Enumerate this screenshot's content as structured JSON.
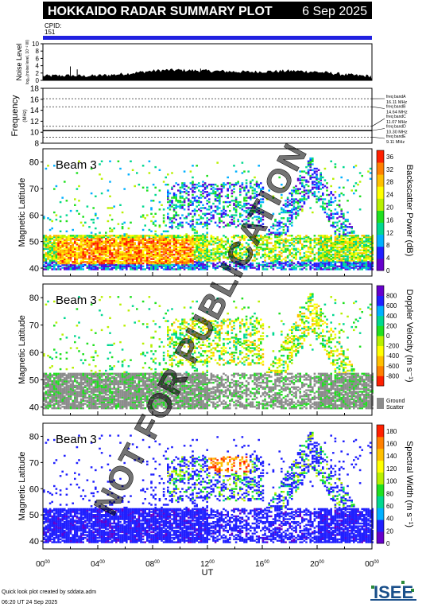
{
  "header": {
    "title": "HOKKAIDO RADAR SUMMARY PLOT",
    "date": "6 Sep 2025",
    "cpid_label": "CPID:",
    "cpid_value": "151"
  },
  "watermark": "NOT FOR PUBLICATION",
  "footer": {
    "created_by": "Quick look plot created by sddata.adm",
    "created_time": "06:20 UT 24 Sep 2025",
    "logo_text": "ISEE"
  },
  "colors": {
    "cpid_bar": "#2020e0",
    "ground_scatter": "#8c8c8c"
  },
  "chart_data": [
    {
      "type": "area",
      "id": "noise",
      "ylabel": "Noise Level",
      "ylabel_sub": "log₁₀(noise level, 10⁻² W)",
      "yticks": [
        "0",
        "2",
        "4",
        "6",
        "8",
        "10"
      ],
      "ylim": [
        0,
        10
      ],
      "x_hours": [
        0,
        1,
        2,
        3,
        4,
        5,
        6,
        7,
        8,
        9,
        10,
        11,
        12,
        13,
        14,
        15,
        16,
        17,
        18,
        19,
        20,
        21,
        22,
        23,
        24
      ],
      "values": [
        1.2,
        1.3,
        1.3,
        1.2,
        1.3,
        1.5,
        1.8,
        2.2,
        2.6,
        2.8,
        2.8,
        2.7,
        2.6,
        2.5,
        2.4,
        2.3,
        2.4,
        2.5,
        2.6,
        2.5,
        2.3,
        2.0,
        1.6,
        1.3,
        1.2
      ],
      "spikes": [
        {
          "x": 2.0,
          "y": 3.8
        },
        {
          "x": 2.5,
          "y": 3.0
        },
        {
          "x": 11.5,
          "y": 3.2
        }
      ]
    },
    {
      "type": "line",
      "id": "frequency",
      "ylabel": "Frequency",
      "ylabel_unit": "(MHz)",
      "yticks": [
        "8",
        "10",
        "12",
        "14",
        "16",
        "18"
      ],
      "ylim": [
        8,
        18
      ],
      "bands": [
        {
          "name": "freq bandA",
          "mhz": "16.11 MHz",
          "value": 16.11
        },
        {
          "name": "freq bandB",
          "mhz": "14.64 MHz",
          "value": 14.64
        },
        {
          "name": "freq bandC",
          "mhz": "11.07 MHz",
          "value": 11.07
        },
        {
          "name": "freq bandD",
          "mhz": "10.30 MHz",
          "value": 10.3
        },
        {
          "name": "freq bandE",
          "mhz": "9.11 MHz",
          "value": 9.11
        }
      ],
      "active_value": 10.3
    },
    {
      "type": "heatmap",
      "id": "power",
      "beam_label": "Beam  3",
      "ylabel": "Magnetic Latitude",
      "yticks": [
        "40",
        "50",
        "60",
        "70",
        "80"
      ],
      "ylim": [
        37,
        85
      ],
      "colorbar_label": "Backscatter Power (dB)",
      "colorbar_ticks": [
        "0",
        "4",
        "8",
        "12",
        "16",
        "20",
        "24",
        "28",
        "32",
        "36"
      ],
      "colorbar_range": [
        0,
        38
      ],
      "colormap": [
        "#6600cc",
        "#2020ff",
        "#00b0ff",
        "#00d890",
        "#20e020",
        "#b8f000",
        "#ffff00",
        "#ffc000",
        "#ff8000",
        "#ff2000"
      ]
    },
    {
      "type": "heatmap",
      "id": "velocity",
      "beam_label": "Beam  3",
      "ylabel": "Magnetic Latitude",
      "yticks": [
        "40",
        "50",
        "60",
        "70",
        "80"
      ],
      "ylim": [
        37,
        85
      ],
      "colorbar_label": "Doppler Velocity (m s⁻¹)",
      "colorbar_ticks": [
        "800",
        "600",
        "400",
        "200",
        "0",
        "-200",
        "-400",
        "-600",
        "-800"
      ],
      "colorbar_range": [
        -900,
        900
      ],
      "colormap": [
        "#ff2000",
        "#ff8000",
        "#ffc000",
        "#ffff00",
        "#b8f000",
        "#20e020",
        "#00d890",
        "#00b0ff",
        "#2020ff",
        "#6600cc"
      ],
      "ground_scatter_label": "Ground",
      "ground_scatter_label2": "Scatter"
    },
    {
      "type": "heatmap",
      "id": "width",
      "beam_label": "Beam  3",
      "ylabel": "Magnetic Latitude",
      "yticks": [
        "40",
        "50",
        "60",
        "70",
        "80"
      ],
      "ylim": [
        37,
        85
      ],
      "xlabel": "UT",
      "xticks": [
        "00",
        "04",
        "08",
        "12",
        "16",
        "20",
        "00"
      ],
      "xtick_sup": "00",
      "colorbar_label": "Spectral Width (m s⁻¹)",
      "colorbar_ticks": [
        "0",
        "20",
        "40",
        "60",
        "80",
        "100",
        "120",
        "140",
        "160",
        "180"
      ],
      "colorbar_range": [
        0,
        190
      ],
      "colormap": [
        "#6600cc",
        "#2020ff",
        "#00b0ff",
        "#00d890",
        "#20e020",
        "#b8f000",
        "#ffff00",
        "#ffc000",
        "#ff8000",
        "#ff2000"
      ]
    }
  ]
}
